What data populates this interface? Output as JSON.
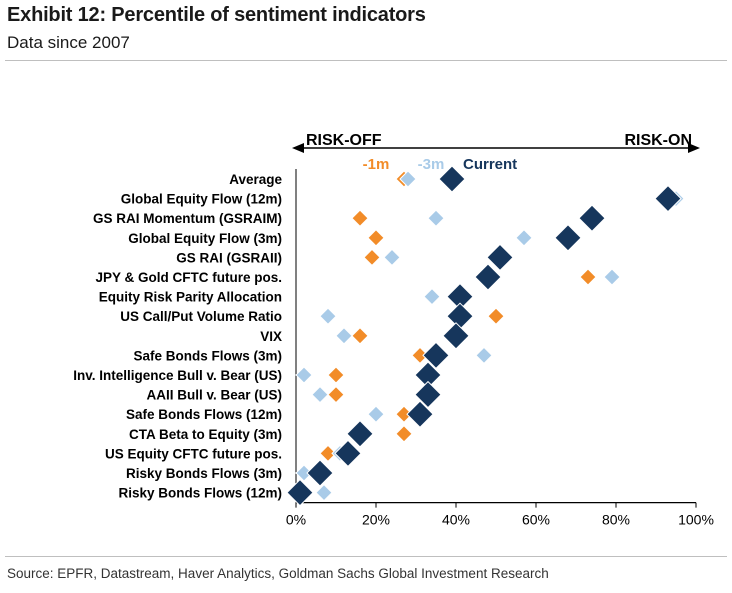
{
  "header": {
    "title": "Exhibit 12: Percentile of sentiment indicators",
    "subtitle": "Data since 2007"
  },
  "footer": {
    "source": "Source: EPFR, Datastream, Haver Analytics, Goldman Sachs Global Investment Research"
  },
  "chart_data": {
    "type": "scatter",
    "title": "Exhibit 12: Percentile of sentiment indicators",
    "subtitle": "Data since 2007",
    "xlabel": "",
    "ylabel": "",
    "xlim": [
      0,
      1
    ],
    "x_ticks": [
      "0%",
      "20%",
      "40%",
      "60%",
      "80%",
      "100%"
    ],
    "direction_labels": {
      "left": "RISK-OFF",
      "right": "RISK-ON"
    },
    "categories": [
      "Average",
      "Global Equity Flow (12m)",
      "GS RAI Momentum (GSRAIM)",
      "Global Equity Flow (3m)",
      "GS RAI (GSRAII)",
      "JPY & Gold CFTC future pos.",
      "Equity Risk Parity Allocation",
      "US Call/Put Volume Ratio",
      "VIX",
      "Safe Bonds Flows (3m)",
      "Inv. Intelligence Bull v. Bear (US)",
      "AAII Bull v. Bear (US)",
      "Safe Bonds Flows (12m)",
      "CTA Beta to Equity (3m)",
      "US Equity CFTC future pos.",
      "Risky Bonds Flows (3m)",
      "Risky Bonds Flows (12m)"
    ],
    "series": [
      {
        "name": "-1m",
        "color": "#f28c28",
        "marker": "diamond",
        "size": "small",
        "label_color": "#f28c28",
        "values": [
          0.27,
          0.93,
          0.16,
          0.2,
          0.19,
          0.73,
          null,
          0.5,
          0.16,
          0.31,
          0.1,
          0.1,
          0.27,
          0.27,
          0.08,
          0.02,
          0.01
        ]
      },
      {
        "name": "-3m",
        "color": "#a9cbe8",
        "marker": "diamond",
        "size": "small",
        "label_color": "#a9cbe8",
        "values": [
          0.28,
          0.95,
          0.35,
          0.57,
          0.24,
          0.79,
          0.34,
          0.08,
          0.12,
          0.47,
          0.02,
          0.06,
          0.2,
          0.16,
          0.11,
          0.02,
          0.07
        ]
      },
      {
        "name": "Current",
        "color": "#16365c",
        "marker": "diamond",
        "size": "large",
        "label_color": "#16365c",
        "values": [
          0.39,
          0.93,
          0.74,
          0.68,
          0.51,
          0.48,
          0.41,
          0.41,
          0.4,
          0.35,
          0.33,
          0.33,
          0.31,
          0.16,
          0.13,
          0.06,
          0.01
        ]
      }
    ],
    "grid": false,
    "legend": "inline labels above Average row"
  }
}
